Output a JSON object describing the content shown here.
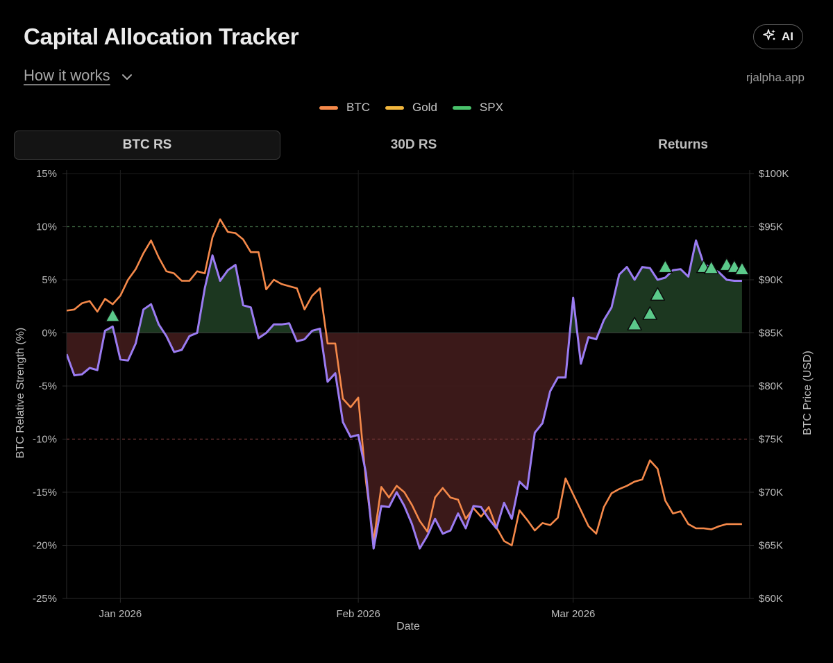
{
  "header": {
    "title": "Capital Allocation Tracker",
    "ai_label": "AI",
    "how_it_works": "How it works",
    "site": "rjalpha.app"
  },
  "legend": [
    {
      "label": "BTC",
      "color": "#f5894a"
    },
    {
      "label": "Gold",
      "color": "#f2b63d"
    },
    {
      "label": "SPX",
      "color": "#49c26b"
    }
  ],
  "tabs": [
    {
      "label": "BTC RS",
      "active": true
    },
    {
      "label": "30D RS",
      "active": false
    },
    {
      "label": "Returns",
      "active": false
    }
  ],
  "chart_data": {
    "type": "line",
    "xlabel": "Date",
    "ylabel": "BTC Relative Strength (%)",
    "ylabel_right": "BTC Price (USD)",
    "x_range": [
      "2025-12-25",
      "2026-03-28"
    ],
    "x_ticks": [
      {
        "label": "Jan 2026",
        "day": 7
      },
      {
        "label": "Feb 2026",
        "day": 38
      },
      {
        "label": "Mar 2026",
        "day": 66
      }
    ],
    "ylim": [
      -25,
      15
    ],
    "y_ticks": [
      15,
      10,
      5,
      0,
      -5,
      -10,
      -15,
      -20,
      -25
    ],
    "y_tick_labels": [
      "15%",
      "10%",
      "5%",
      "0%",
      "-5%",
      "-10%",
      "-15%",
      "-20%",
      "-25%"
    ],
    "ylim_right": [
      60000,
      100000
    ],
    "y2_tick_labels": [
      "$100K",
      "$95K",
      "$90K",
      "$85K",
      "$80K",
      "$75K",
      "$70K",
      "$65K",
      "$60K"
    ],
    "thresholds": [
      10,
      -10
    ],
    "series": [
      {
        "name": "BTC Relative Strength",
        "axis": "left",
        "color": "#9b7cf2",
        "days": [
          0,
          1,
          2,
          3,
          4,
          5,
          6,
          7,
          8,
          9,
          10,
          11,
          12,
          13,
          14,
          15,
          16,
          17,
          18,
          19,
          20,
          21,
          22,
          23,
          24,
          25,
          26,
          27,
          28,
          29,
          30,
          31,
          32,
          33,
          34,
          35,
          36,
          37,
          38,
          39,
          40,
          41,
          42,
          43,
          44,
          45,
          46,
          47,
          48,
          49,
          50,
          51,
          52,
          53,
          54,
          55,
          56,
          57,
          58,
          59,
          60,
          61,
          62,
          63,
          64,
          65,
          66,
          67,
          68,
          69,
          70,
          71,
          72,
          73,
          74,
          75,
          76,
          77,
          78,
          79,
          80,
          81,
          82,
          83,
          84,
          85,
          86,
          87,
          88
        ],
        "values": [
          -2.0,
          -4.0,
          -3.9,
          -3.3,
          -3.5,
          0.2,
          0.6,
          -2.5,
          -2.6,
          -1.0,
          2.2,
          2.7,
          0.8,
          -0.3,
          -1.8,
          -1.6,
          -0.3,
          0.0,
          4.2,
          7.3,
          4.9,
          5.9,
          6.4,
          2.6,
          2.4,
          -0.5,
          0.0,
          0.8,
          0.8,
          0.9,
          -0.8,
          -0.6,
          0.2,
          0.4,
          -4.6,
          -3.8,
          -8.4,
          -9.8,
          -9.6,
          -13.2,
          -20.3,
          -16.3,
          -16.4,
          -15.0,
          -16.3,
          -18.0,
          -20.3,
          -19.1,
          -17.5,
          -18.9,
          -18.6,
          -17.0,
          -18.4,
          -16.3,
          -16.4,
          -17.5,
          -18.4,
          -16.0,
          -17.5,
          -14.0,
          -14.7,
          -9.4,
          -8.5,
          -5.5,
          -4.2,
          -4.2,
          3.3,
          -2.9,
          -0.4,
          -0.6,
          1.2,
          2.4,
          5.5,
          6.2,
          5.0,
          6.2,
          6.1,
          5.0,
          5.2,
          5.9,
          6.0,
          5.3,
          8.7,
          6.5,
          6.1,
          5.7,
          5.0,
          4.9,
          4.9
        ]
      },
      {
        "name": "BTC Price",
        "axis": "right",
        "color": "#f5894a",
        "days": [
          0,
          1,
          2,
          3,
          4,
          5,
          6,
          7,
          8,
          9,
          10,
          11,
          12,
          13,
          14,
          15,
          16,
          17,
          18,
          19,
          20,
          21,
          22,
          23,
          24,
          25,
          26,
          27,
          28,
          29,
          30,
          31,
          32,
          33,
          34,
          35,
          36,
          37,
          38,
          39,
          40,
          41,
          42,
          43,
          44,
          45,
          46,
          47,
          48,
          49,
          50,
          51,
          52,
          53,
          54,
          55,
          56,
          57,
          58,
          59,
          60,
          61,
          62,
          63,
          64,
          65,
          66,
          67,
          68,
          69,
          70,
          71,
          72,
          73,
          74,
          75,
          76,
          77,
          78,
          79,
          80,
          81,
          82,
          83,
          84,
          85,
          86,
          87,
          88
        ],
        "values": [
          87100,
          87200,
          87800,
          88000,
          87000,
          88200,
          87700,
          88500,
          90000,
          91000,
          92500,
          93700,
          92100,
          90800,
          90600,
          89900,
          89900,
          90800,
          90600,
          94000,
          95700,
          94500,
          94400,
          93800,
          92600,
          92600,
          89100,
          90000,
          89600,
          89400,
          89200,
          87200,
          88500,
          89200,
          84000,
          84000,
          78800,
          78000,
          78900,
          71000,
          65400,
          70500,
          69500,
          70600,
          70000,
          68800,
          67300,
          66300,
          69500,
          70400,
          69500,
          69300,
          67500,
          68500,
          67700,
          68600,
          66700,
          65400,
          65000,
          68300,
          67400,
          66400,
          67100,
          66900,
          67600,
          71300,
          69800,
          68300,
          66800,
          66100,
          68600,
          69900,
          70300,
          70600,
          71000,
          71200,
          73000,
          72200,
          69200,
          68000,
          68200,
          67000,
          66600,
          66600,
          66500,
          66800,
          67000,
          67000,
          67000
        ]
      }
    ],
    "signals": {
      "name": "Buy signals",
      "color": "#5bc98a",
      "points": [
        {
          "day": 6,
          "value": 1.6
        },
        {
          "day": 74,
          "value": 0.8
        },
        {
          "day": 76,
          "value": 1.8
        },
        {
          "day": 77,
          "value": 3.6
        },
        {
          "day": 78,
          "value": 6.2
        },
        {
          "day": 83,
          "value": 6.2
        },
        {
          "day": 84,
          "value": 6.1
        },
        {
          "day": 86,
          "value": 6.4
        },
        {
          "day": 87,
          "value": 6.2
        },
        {
          "day": 88,
          "value": 6.0
        }
      ]
    }
  }
}
